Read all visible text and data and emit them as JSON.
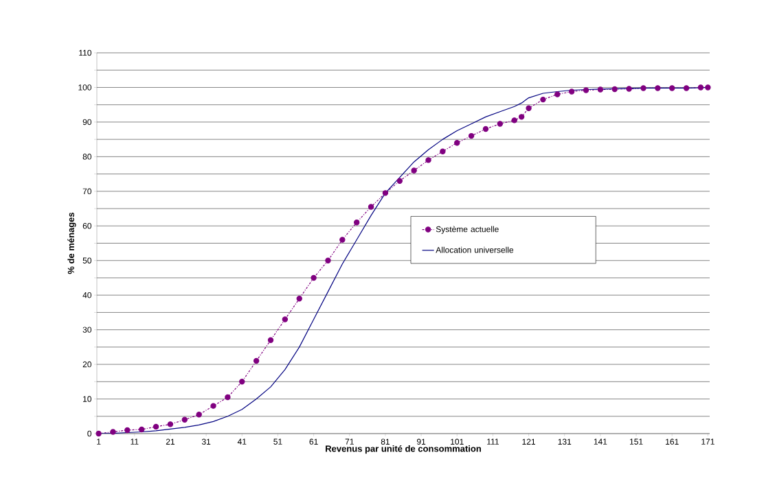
{
  "chart_data": {
    "type": "line",
    "xlabel": "Revenus par unité de consommation",
    "ylabel": "% de ménages",
    "xlim": [
      0.5,
      171.5
    ],
    "xticks": [
      1,
      11,
      21,
      31,
      41,
      51,
      61,
      71,
      81,
      91,
      101,
      111,
      121,
      131,
      141,
      151,
      161,
      171
    ],
    "ylim": [
      0,
      110
    ],
    "yticks": [
      0,
      {
        "value": 5,
        "label": null
      },
      10,
      {
        "value": 15,
        "label": null
      },
      20,
      {
        "value": 25,
        "label": null
      },
      30,
      {
        "value": 35,
        "label": null
      },
      40,
      {
        "value": 45,
        "label": null
      },
      50,
      {
        "value": 55,
        "label": null
      },
      60,
      {
        "value": 65,
        "label": null
      },
      70,
      {
        "value": 75,
        "label": null
      },
      80,
      {
        "value": 85,
        "label": null
      },
      90,
      {
        "value": 95,
        "label": null
      },
      100,
      {
        "value": 105,
        "label": null
      },
      110
    ],
    "grid": "y",
    "legend": "right",
    "series": [
      {
        "name": "Système actuelle",
        "color": "#800080",
        "marker": "circle",
        "line_style": "dashed",
        "x": [
          1,
          5,
          9,
          13,
          17,
          21,
          25,
          29,
          33,
          37,
          41,
          45,
          49,
          53,
          57,
          61,
          65,
          69,
          73,
          77,
          81,
          85,
          89,
          93,
          97,
          101,
          105,
          109,
          113,
          117,
          119,
          121,
          125,
          129,
          133,
          137,
          141,
          145,
          149,
          153,
          157,
          161,
          165,
          169,
          171
        ],
        "values": [
          0,
          0.5,
          1,
          1.2,
          2,
          2.7,
          4,
          5.5,
          8,
          10.5,
          15,
          21,
          27,
          33,
          39,
          45,
          50,
          56,
          61,
          65.5,
          69.5,
          73,
          76,
          79,
          81.5,
          84,
          86,
          88,
          89.5,
          90.5,
          91.5,
          94,
          96.5,
          98,
          98.8,
          99.2,
          99.4,
          99.5,
          99.6,
          99.8,
          99.8,
          99.8,
          99.8,
          100,
          100
        ]
      },
      {
        "name": "Allocation universelle",
        "color": "#000080",
        "marker": "none",
        "line_style": "solid",
        "x": [
          1,
          5,
          9,
          13,
          17,
          21,
          25,
          29,
          33,
          37,
          41,
          45,
          49,
          53,
          57,
          61,
          65,
          69,
          73,
          77,
          81,
          85,
          89,
          93,
          97,
          101,
          105,
          109,
          113,
          117,
          119,
          121,
          125,
          129,
          133,
          137,
          141,
          145,
          149,
          153,
          157,
          161,
          165,
          169,
          171
        ],
        "values": [
          0,
          0.1,
          0.3,
          0.5,
          0.8,
          1.3,
          1.8,
          2.5,
          3.5,
          5,
          7,
          10,
          13.5,
          18.5,
          25,
          33,
          41,
          49,
          56,
          63,
          69.5,
          74,
          78.5,
          82,
          85,
          87.5,
          89.5,
          91.5,
          93,
          94.5,
          95.5,
          97,
          98.3,
          98.8,
          99.2,
          99.4,
          99.5,
          99.6,
          99.7,
          99.8,
          99.8,
          99.8,
          99.8,
          99.9,
          100
        ]
      }
    ]
  }
}
